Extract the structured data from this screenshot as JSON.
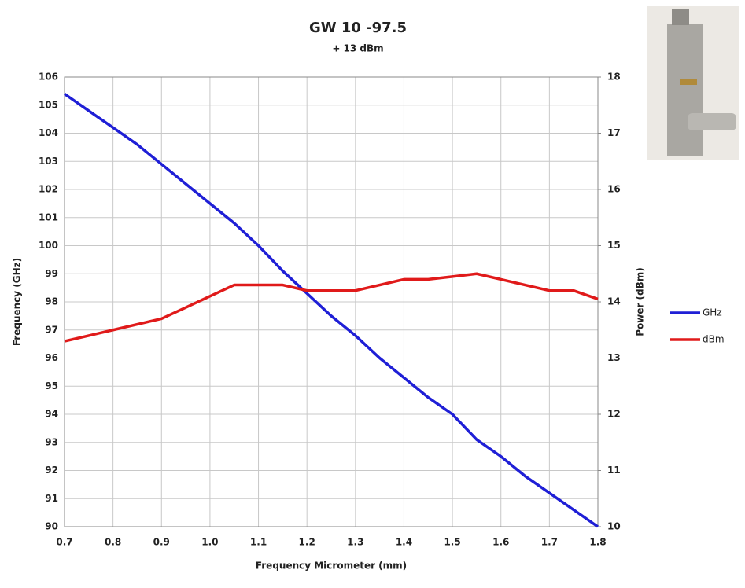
{
  "chart_data": {
    "type": "line",
    "title": "GW 10 -97.5",
    "subtitle": "+ 13 dBm",
    "xlabel": "Frequency Micrometer (mm)",
    "ylabel": "Frequency (GHz)",
    "y2label": "Power (dBm)",
    "x": [
      0.7,
      0.75,
      0.8,
      0.85,
      0.9,
      0.95,
      1.0,
      1.05,
      1.1,
      1.15,
      1.2,
      1.25,
      1.3,
      1.35,
      1.4,
      1.45,
      1.5,
      1.55,
      1.6,
      1.65,
      1.7,
      1.75,
      1.8
    ],
    "series": [
      {
        "name": "GHz",
        "color": "#1f1fd6",
        "values": [
          105.4,
          104.8,
          104.2,
          103.6,
          102.9,
          102.2,
          101.5,
          100.8,
          100.0,
          99.1,
          98.3,
          97.5,
          96.8,
          96.0,
          95.3,
          94.6,
          94.0,
          93.1,
          92.5,
          91.8,
          91.2,
          90.6,
          90.0
        ]
      },
      {
        "name": "dBm",
        "color": "#e01a1a",
        "axis": "y2",
        "values": [
          13.3,
          13.4,
          13.5,
          13.6,
          13.7,
          13.9,
          14.1,
          14.3,
          14.3,
          14.3,
          14.2,
          14.2,
          14.2,
          14.3,
          14.4,
          14.4,
          14.45,
          14.5,
          14.4,
          14.3,
          14.2,
          14.2,
          14.05
        ]
      }
    ],
    "xlim": [
      0.7,
      1.8
    ],
    "xticks": [
      0.7,
      0.8,
      0.9,
      {
        "value": 1,
        "label": "1.0"
      },
      1.1,
      1.2,
      1.3,
      1.4,
      1.5,
      1.6,
      1.7,
      1.8
    ],
    "ylim": [
      90,
      106
    ],
    "yticks": [
      90,
      91,
      92,
      93,
      94,
      95,
      96,
      97,
      98,
      99,
      100,
      101,
      102,
      103,
      104,
      105,
      106
    ],
    "y2lim": [
      10,
      18
    ],
    "y2ticks": [
      10,
      11,
      12,
      13,
      14,
      15,
      16,
      17,
      18
    ],
    "grid": true,
    "legend": "right"
  }
}
